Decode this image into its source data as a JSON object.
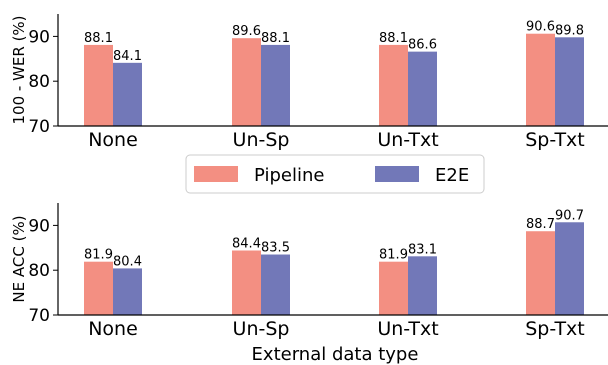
{
  "colors": {
    "pipeline": "#f38f82",
    "e2e": "#7278b8",
    "axis": "#000000",
    "legend_border": "#cccccc"
  },
  "legend": {
    "items": [
      {
        "label": "Pipeline",
        "color": "#f38f82"
      },
      {
        "label": "E2E",
        "color": "#7278b8"
      }
    ]
  },
  "chart_data": [
    {
      "type": "bar",
      "title": "",
      "xlabel": "",
      "ylabel": "100 - WER (%)",
      "ylim": [
        70,
        95
      ],
      "yticks": [
        70,
        80,
        90
      ],
      "categories": [
        "None",
        "Un-Sp",
        "Un-Txt",
        "Sp-Txt"
      ],
      "series": [
        {
          "name": "Pipeline",
          "color": "#f38f82",
          "values": [
            88.1,
            89.6,
            88.1,
            90.6
          ],
          "labels": [
            "88.1",
            "89.6",
            "88.1",
            "90.6"
          ]
        },
        {
          "name": "E2E",
          "color": "#7278b8",
          "values": [
            84.1,
            88.1,
            86.6,
            89.8
          ],
          "labels": [
            "84.1",
            "88.1",
            "86.6",
            "89.8"
          ]
        }
      ],
      "grid": false
    },
    {
      "type": "bar",
      "title": "",
      "xlabel": "External data type",
      "ylabel": "NE ACC (%)",
      "ylim": [
        70,
        95
      ],
      "yticks": [
        70,
        80,
        90
      ],
      "categories": [
        "None",
        "Un-Sp",
        "Un-Txt",
        "Sp-Txt"
      ],
      "series": [
        {
          "name": "Pipeline",
          "color": "#f38f82",
          "values": [
            81.9,
            84.4,
            81.9,
            88.7
          ],
          "labels": [
            "81.9",
            "84.4",
            "81.9",
            "88.7"
          ]
        },
        {
          "name": "E2E",
          "color": "#7278b8",
          "values": [
            80.4,
            83.5,
            83.1,
            90.7
          ],
          "labels": [
            "80.4",
            "83.5",
            "83.1",
            "90.7"
          ]
        }
      ],
      "grid": false
    }
  ]
}
